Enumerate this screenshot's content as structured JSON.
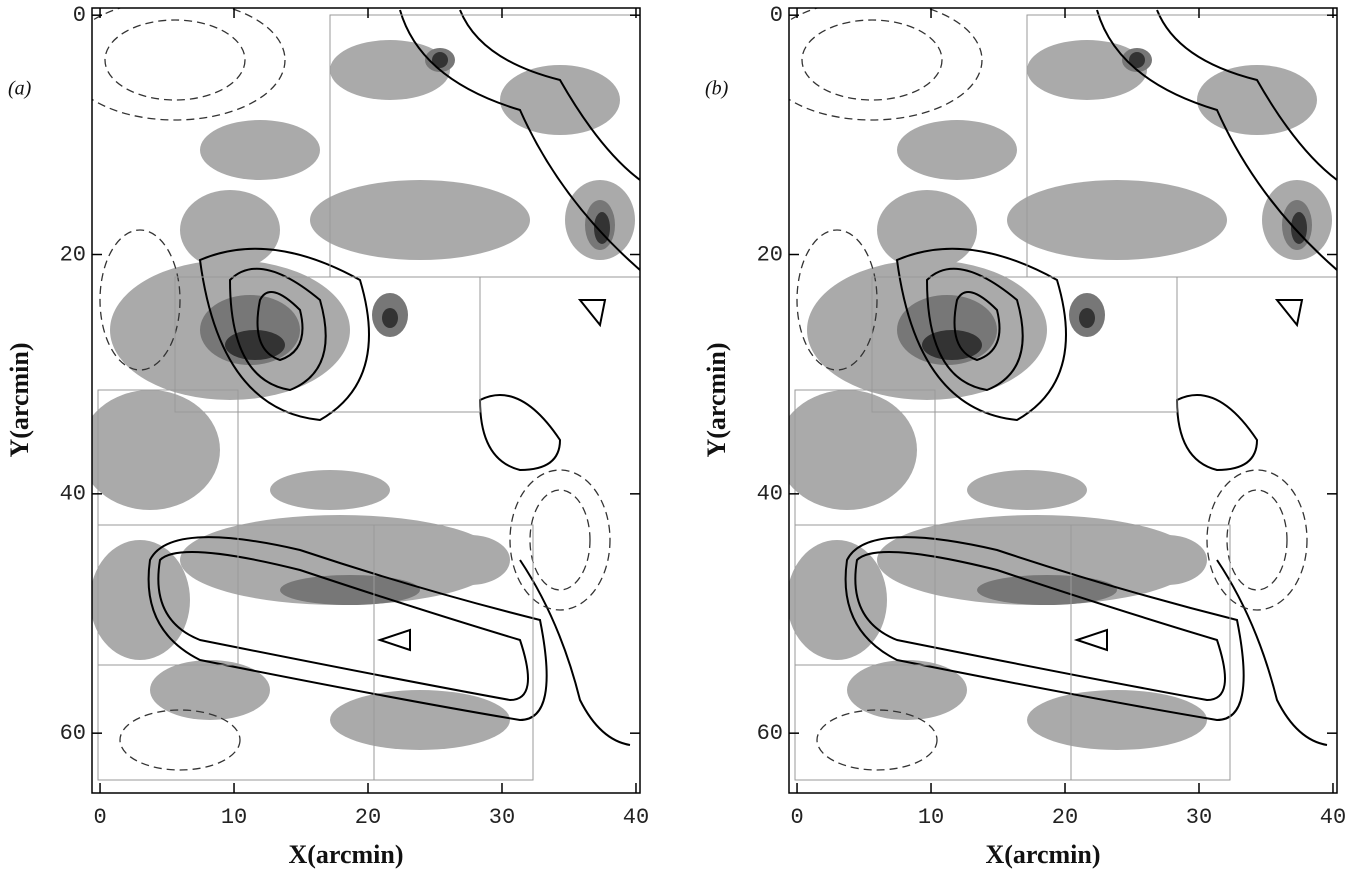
{
  "chart_data": [
    {
      "type": "contour",
      "label": "(a)",
      "xlabel": "X(arcmin)",
      "ylabel": "Y(arcmin)",
      "xlim": [
        -0.6,
        40.3
      ],
      "ylim": [
        -0.6,
        65
      ],
      "y_inverted": true,
      "xticks": [
        0,
        10,
        20,
        30,
        40
      ],
      "yticks": [
        0,
        20,
        40,
        60
      ]
    },
    {
      "type": "contour",
      "label": "(b)",
      "xlabel": "X(arcmin)",
      "ylabel": "Y(arcmin)",
      "xlim": [
        -0.6,
        40.3
      ],
      "ylim": [
        -0.6,
        65
      ],
      "y_inverted": true,
      "xticks": [
        0,
        10,
        20,
        30,
        40
      ],
      "yticks": [
        0,
        20,
        40,
        60
      ]
    }
  ]
}
